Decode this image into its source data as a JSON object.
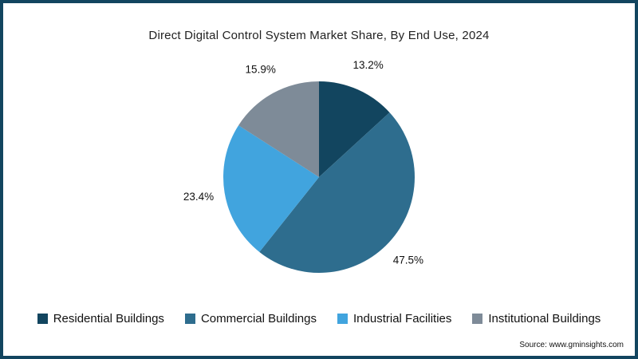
{
  "title": "Direct Digital Control System Market Share, By End Use, 2024",
  "source": "Source: www.gminsights.com",
  "frame_color": "#12455f",
  "chart_data": {
    "type": "pie",
    "title": "Direct Digital Control System Market Share, By End Use, 2024",
    "labels": [
      "Residential Buildings",
      "Commercial Buildings",
      "Industrial Facilities",
      "Institutional Buildings"
    ],
    "values": [
      13.2,
      47.5,
      23.4,
      15.9
    ],
    "value_labels": [
      "13.2%",
      "47.5%",
      "23.4%",
      "15.9%"
    ],
    "colors": [
      "#12455f",
      "#2e6d8e",
      "#41a4de",
      "#7e8b98"
    ],
    "start_angle_deg": 0,
    "direction": "clockwise",
    "legend_position": "bottom",
    "value_label_position": "outside"
  }
}
